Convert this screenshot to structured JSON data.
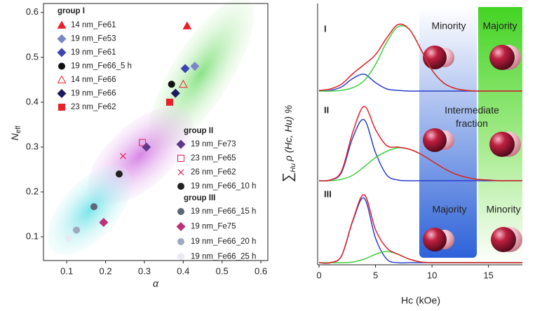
{
  "chart_data": [
    {
      "type": "scatter",
      "xlabel": "α",
      "ylabel": {
        "main": "N",
        "sub": "eff"
      },
      "xlim": [
        0.04,
        0.618
      ],
      "ylim": [
        0.047,
        0.62
      ],
      "xticks": [
        0.1,
        0.2,
        0.3,
        0.4,
        0.5,
        0.6
      ],
      "yticks": [
        0.1,
        0.2,
        0.3,
        0.4,
        0.5,
        0.6
      ],
      "groups": [
        {
          "name": "group I",
          "series": [
            {
              "name": "14 nm_Fe61",
              "marker": "triangle",
              "color": "#e8202a",
              "x": 0.41,
              "y": 0.57
            },
            {
              "name": "19 nm_Fe53",
              "marker": "diamond",
              "color": "#7b86c8",
              "x": 0.43,
              "y": 0.48
            },
            {
              "name": "19 nm_Fe61",
              "marker": "diamond",
              "color": "#3b45b4",
              "x": 0.405,
              "y": 0.475
            },
            {
              "name": "19 nm_Fe66_5 h",
              "marker": "circle",
              "color": "#111111",
              "x": 0.37,
              "y": 0.44
            },
            {
              "name": "14 nm_Fe66",
              "marker": "triangle-open",
              "color": "#e8202a",
              "x": 0.4,
              "y": 0.44
            },
            {
              "name": "19 nm_Fe66",
              "marker": "diamond",
              "color": "#1a1a5e",
              "x": 0.38,
              "y": 0.42
            },
            {
              "name": "23 nm_Fe62",
              "marker": "square",
              "color": "#e8202a",
              "x": 0.365,
              "y": 0.4
            }
          ]
        },
        {
          "name": "group II",
          "series": [
            {
              "name": "19 nm_Fe73",
              "marker": "diamond",
              "color": "#5a3a8a",
              "x": 0.305,
              "y": 0.3
            },
            {
              "name": "23 nm_Fe65",
              "marker": "square-open",
              "color": "#e02050",
              "x": 0.295,
              "y": 0.31
            },
            {
              "name": "26 nm_Fe62",
              "marker": "x",
              "color": "#e02050",
              "x": 0.245,
              "y": 0.28
            },
            {
              "name": "19 nm_Fe66_10 h",
              "marker": "circle",
              "color": "#222222",
              "x": 0.235,
              "y": 0.24
            }
          ]
        },
        {
          "name": "group III",
          "series": [
            {
              "name": "19 nm_Fe66_15 h",
              "marker": "circle",
              "color": "#5e6678",
              "x": 0.17,
              "y": 0.167
            },
            {
              "name": "19 nm_Fe75",
              "marker": "diamond",
              "color": "#c0307a",
              "x": 0.195,
              "y": 0.132
            },
            {
              "name": "19 nm_Fe66_20 h",
              "marker": "circle",
              "color": "#a0a8c0",
              "x": 0.125,
              "y": 0.115
            },
            {
              "name": "19 nm_Fe66_25 h",
              "marker": "circle",
              "color": "#e8eaf2",
              "x": 0.105,
              "y": 0.097
            }
          ]
        }
      ]
    },
    {
      "type": "line",
      "xlabel": "Hc (kOe)",
      "ylabel": [
        "∑",
        "Hu",
        "ρ (Hc, Hu) %"
      ],
      "xlim": [
        0,
        18
      ],
      "xticks": [
        0,
        5,
        10,
        15
      ],
      "x": [
        0,
        1,
        2,
        3,
        4,
        5,
        6,
        7,
        8,
        9,
        10,
        11,
        12,
        13,
        14,
        15,
        16,
        17,
        18
      ],
      "annotations": [
        "Minority",
        "Majority",
        "Intermediate fraction",
        "Majority",
        "Minority"
      ],
      "panels": [
        {
          "label": "I",
          "series": [
            {
              "color": "#2a3fc8",
              "values": [
                0,
                0.01,
                0.06,
                0.18,
                0.24,
                0.12,
                0.03,
                0.01,
                0,
                0,
                0,
                0,
                0,
                0,
                0,
                0,
                0,
                0,
                0
              ]
            },
            {
              "color": "#3ccf3c",
              "values": [
                0,
                0,
                0.01,
                0.05,
                0.15,
                0.38,
                0.7,
                0.92,
                0.88,
                0.6,
                0.3,
                0.12,
                0.04,
                0.01,
                0,
                0,
                0,
                0,
                0
              ]
            },
            {
              "color": "#e0202a",
              "values": [
                0.01,
                0.03,
                0.1,
                0.25,
                0.38,
                0.52,
                0.76,
                0.95,
                0.88,
                0.6,
                0.3,
                0.12,
                0.04,
                0.01,
                0,
                0,
                0,
                0,
                0
              ]
            }
          ]
        },
        {
          "label": "II",
          "series": [
            {
              "color": "#2a3fc8",
              "values": [
                0,
                0.01,
                0.12,
                0.62,
                0.87,
                0.4,
                0.08,
                0.01,
                0,
                0,
                0,
                0,
                0,
                0,
                0,
                0,
                0,
                0,
                0
              ]
            },
            {
              "color": "#3ccf3c",
              "values": [
                0,
                0,
                0.02,
                0.08,
                0.2,
                0.33,
                0.42,
                0.47,
                0.45,
                0.38,
                0.28,
                0.18,
                0.1,
                0.05,
                0.02,
                0.01,
                0,
                0,
                0
              ]
            },
            {
              "color": "#e0202a",
              "values": [
                0,
                0.01,
                0.14,
                0.7,
                1.06,
                0.73,
                0.5,
                0.48,
                0.45,
                0.38,
                0.28,
                0.18,
                0.1,
                0.05,
                0.02,
                0.01,
                0,
                0,
                0
              ]
            }
          ]
        },
        {
          "label": "III",
          "series": [
            {
              "color": "#2a3fc8",
              "values": [
                0,
                0,
                0.1,
                0.6,
                0.92,
                0.35,
                0.05,
                0,
                0,
                0,
                0,
                0,
                0,
                0,
                0,
                0,
                0,
                0,
                0
              ]
            },
            {
              "color": "#3ccf3c",
              "values": [
                0,
                0,
                0,
                0.01,
                0.05,
                0.12,
                0.16,
                0.12,
                0.05,
                0.01,
                0,
                0,
                0,
                0,
                0,
                0,
                0,
                0,
                0
              ]
            },
            {
              "color": "#e0202a",
              "values": [
                0,
                0,
                0.1,
                0.61,
                0.97,
                0.47,
                0.21,
                0.12,
                0.05,
                0.01,
                0,
                0,
                0,
                0,
                0,
                0,
                0,
                0,
                0
              ]
            }
          ]
        }
      ]
    }
  ]
}
